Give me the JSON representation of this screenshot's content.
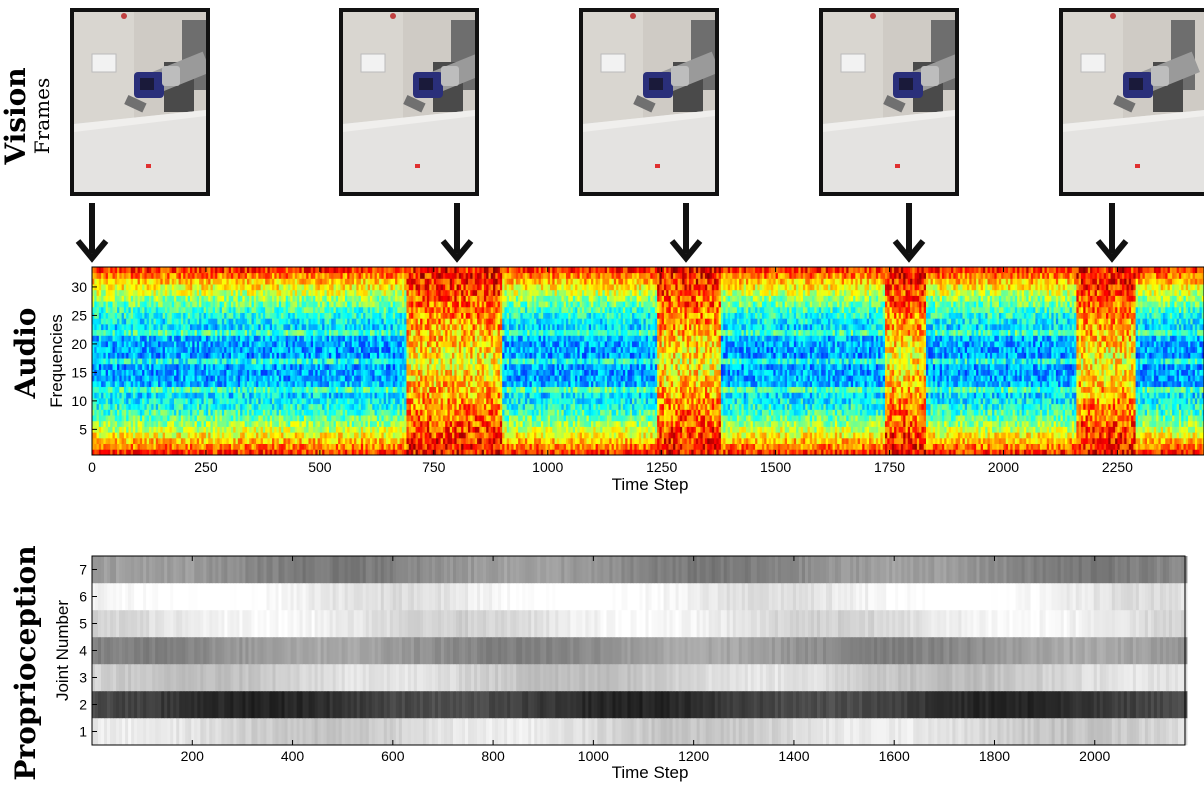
{
  "vision": {
    "title": "Vision",
    "subtitle": "Frames",
    "frames": [
      {
        "time_step": 0
      },
      {
        "time_step": 805
      },
      {
        "time_step": 1320
      },
      {
        "time_step": 1805
      },
      {
        "time_step": 2245
      }
    ]
  },
  "audio": {
    "title": "Audio"
  },
  "proprioception": {
    "title": "Proprioception"
  },
  "colors": {
    "frame_border": "#111111",
    "arrow": "#111111",
    "jet_low": "#00008f",
    "jet_high": "#800000"
  },
  "chart_data": [
    {
      "type": "heatmap",
      "name": "audio-spectrogram",
      "xlabel": "Time Step",
      "ylabel": "Frequencies",
      "xlim": [
        0,
        2440
      ],
      "ylim": [
        0.5,
        33.5
      ],
      "xticks": [
        0,
        250,
        500,
        750,
        1000,
        1250,
        1500,
        1750,
        2000,
        2250
      ],
      "yticks": [
        5,
        10,
        15,
        20,
        25,
        30
      ],
      "colormap": "jet",
      "segments": [
        {
          "start": 0,
          "end": 690,
          "energy": "low"
        },
        {
          "start": 690,
          "end": 900,
          "energy": "high"
        },
        {
          "start": 900,
          "end": 1240,
          "energy": "low"
        },
        {
          "start": 1240,
          "end": 1380,
          "energy": "high"
        },
        {
          "start": 1380,
          "end": 1740,
          "energy": "low"
        },
        {
          "start": 1740,
          "end": 1830,
          "energy": "high"
        },
        {
          "start": 1830,
          "end": 2160,
          "energy": "low"
        },
        {
          "start": 2160,
          "end": 2290,
          "energy": "high"
        },
        {
          "start": 2290,
          "end": 2440,
          "energy": "low"
        }
      ]
    },
    {
      "type": "heatmap",
      "name": "proprioception-joints",
      "xlabel": "Time Step",
      "ylabel": "Joint Number",
      "xlim": [
        0,
        2180
      ],
      "ylim": [
        0.5,
        7.5
      ],
      "xticks": [
        200,
        400,
        600,
        800,
        1000,
        1200,
        1400,
        1600,
        1800,
        2000
      ],
      "yticks": [
        1,
        2,
        3,
        4,
        5,
        6,
        7
      ],
      "colormap": "gray",
      "joints": [
        {
          "joint": 1,
          "intensity": 0.85
        },
        {
          "joint": 2,
          "intensity": 0.22
        },
        {
          "joint": 3,
          "intensity": 0.82
        },
        {
          "joint": 4,
          "intensity": 0.58
        },
        {
          "joint": 5,
          "intensity": 0.9
        },
        {
          "joint": 6,
          "intensity": 0.95
        },
        {
          "joint": 7,
          "intensity": 0.55
        }
      ]
    }
  ]
}
